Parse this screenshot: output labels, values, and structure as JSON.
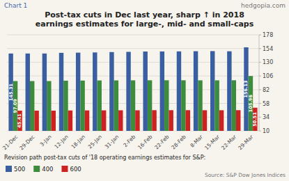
{
  "chart_data": {
    "type": "bar",
    "title": "Post-tax cuts in Dec last year, sharp ↑ in 2018",
    "subtitle": "earnings estimates for large-, mid- and small-caps",
    "annotations": [
      "Chart 1",
      "hedgopia.com",
      "Revision path post-tax cuts of '18 operating earnings estimates for S&P:",
      "Source: S&P Dow Jones Indices"
    ],
    "categories": [
      "21-Dec",
      "29-Dec",
      "3-Jan",
      "12-Jan",
      "18-Jan",
      "25-Jan",
      "31-Jan",
      "2-Feb",
      "16-Feb",
      "22-Feb",
      "28-Feb",
      "8-Mar",
      "15-Mar",
      "22-Mar",
      "29-Mar"
    ],
    "series": [
      {
        "name": "500",
        "color": "#3a5fa0",
        "values": [
          145.31,
          145.31,
          145.31,
          146.5,
          146.8,
          147.2,
          147.8,
          148.2,
          148.8,
          148.9,
          149.0,
          149.3,
          149.5,
          149.2,
          156.13
        ],
        "value_labels": [
          "145.31",
          null,
          null,
          null,
          null,
          null,
          null,
          null,
          null,
          null,
          null,
          null,
          null,
          null,
          "156.13"
        ]
      },
      {
        "name": "400",
        "color": "#3d8c3d",
        "values": [
          97.09,
          97.09,
          97.09,
          97.8,
          98.0,
          98.2,
          98.3,
          98.4,
          98.5,
          98.5,
          98.5,
          98.4,
          98.4,
          98.5,
          105.96
        ],
        "value_labels": [
          "97.09",
          null,
          null,
          null,
          null,
          null,
          null,
          null,
          null,
          null,
          null,
          null,
          null,
          null,
          "105.96"
        ]
      },
      {
        "name": "600",
        "color": "#cc2222",
        "values": [
          45.41,
          45.41,
          45.41,
          45.7,
          45.8,
          45.9,
          46.0,
          46.0,
          46.2,
          46.2,
          46.2,
          46.1,
          46.1,
          46.2,
          50.51
        ],
        "value_labels": [
          "45.41",
          null,
          null,
          null,
          null,
          null,
          null,
          null,
          null,
          null,
          null,
          null,
          null,
          null,
          "50.51"
        ]
      }
    ],
    "ylim": [
      10,
      178
    ],
    "yticks": [
      10,
      34,
      58,
      82,
      106,
      130,
      154,
      178
    ],
    "grid": true,
    "legend": "lower left",
    "data_labels": true
  }
}
